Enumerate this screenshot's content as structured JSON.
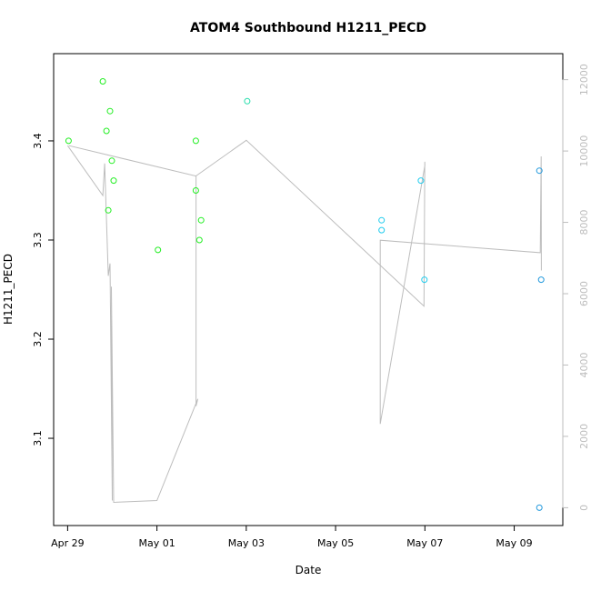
{
  "chart_data": {
    "type": "scatter",
    "title": "ATOM4 Southbound H1211_PECD",
    "xlabel": "Date",
    "ylabel": "H1211_PECD",
    "x_ticks": [
      "Apr 29",
      "May 01",
      "May 03",
      "May 05",
      "May 07",
      "May 09"
    ],
    "xlim": [
      "2013-04-28T16:29",
      "2013-05-10T02:07"
    ],
    "ylim": [
      3.012,
      3.488
    ],
    "y_ticks": [
      3.1,
      3.2,
      3.3,
      3.4
    ],
    "y2_ticks": [
      0,
      2000,
      4000,
      6000,
      8000,
      10000,
      12000
    ],
    "y2lim": [
      -500,
      12730
    ],
    "grid": false,
    "series": [
      {
        "color": "#22ee22",
        "points": [
          {
            "x": "2013-04-29T00:31",
            "y": 3.4
          },
          {
            "x": "2013-04-29T18:55",
            "y": 3.46
          },
          {
            "x": "2013-04-29T20:53",
            "y": 3.41
          },
          {
            "x": "2013-04-29T21:50",
            "y": 3.33
          },
          {
            "x": "2013-04-29T22:48",
            "y": 3.43
          },
          {
            "x": "2013-04-29T23:45",
            "y": 3.38
          },
          {
            "x": "2013-04-30T00:43",
            "y": 3.36
          },
          {
            "x": "2013-05-01T00:31",
            "y": 3.29
          },
          {
            "x": "2013-05-01T20:53",
            "y": 3.4
          },
          {
            "x": "2013-05-01T20:53",
            "y": 3.35
          },
          {
            "x": "2013-05-01T22:48",
            "y": 3.3
          },
          {
            "x": "2013-05-01T23:45",
            "y": 3.32
          }
        ]
      },
      {
        "color": "#22ddaa",
        "points": [
          {
            "x": "2013-05-03T00:31",
            "y": 3.44
          }
        ]
      },
      {
        "color": "#22ccee",
        "points": [
          {
            "x": "2013-05-06T00:43",
            "y": 3.32
          },
          {
            "x": "2013-05-06T00:43",
            "y": 3.31
          },
          {
            "x": "2013-05-06T21:50",
            "y": 3.36
          },
          {
            "x": "2013-05-06T23:45",
            "y": 3.26
          }
        ]
      },
      {
        "color": "#2299dd",
        "points": [
          {
            "x": "2013-05-09T13:31",
            "y": 3.37
          },
          {
            "x": "2013-05-09T14:29",
            "y": 3.26
          },
          {
            "x": "2013-05-09T13:31",
            "y": 3.03
          }
        ]
      }
    ],
    "secondary_line": {
      "color": "#bdbdbd",
      "axis": "right",
      "points": [
        {
          "x": "2013-04-29T00:00",
          "y": 10150
        },
        {
          "x": "2013-04-29T18:55",
          "y": 8750
        },
        {
          "x": "2013-04-29T19:55",
          "y": 9650
        },
        {
          "x": "2013-04-29T21:50",
          "y": 6500
        },
        {
          "x": "2013-04-29T22:48",
          "y": 6850
        },
        {
          "x": "2013-04-30T00:00",
          "y": 200
        },
        {
          "x": "2013-04-29T23:30",
          "y": 6200
        },
        {
          "x": "2013-04-30T00:43",
          "y": 150
        },
        {
          "x": "2013-05-01T00:00",
          "y": 200
        },
        {
          "x": "2013-05-01T22:00",
          "y": 3050
        },
        {
          "x": "2013-05-01T21:00",
          "y": 2850
        },
        {
          "x": "2013-05-01T21:00",
          "y": 9300
        },
        {
          "x": "2013-04-29T00:43",
          "y": 10150
        },
        {
          "x": "2013-05-01T20:53",
          "y": 9300
        },
        {
          "x": "2013-05-03T00:00",
          "y": 10300
        },
        {
          "x": "2013-05-06T23:31",
          "y": 5650
        },
        {
          "x": "2013-05-06T23:56",
          "y": 9700
        },
        {
          "x": "2013-05-07T00:00",
          "y": 9600
        },
        {
          "x": "2013-05-06T00:00",
          "y": 2350
        },
        {
          "x": "2013-05-06T00:00",
          "y": 7500
        },
        {
          "x": "2013-05-09T14:00",
          "y": 7150
        },
        {
          "x": "2013-05-09T14:30",
          "y": 9850
        },
        {
          "x": "2013-05-09T14:36",
          "y": 6650
        }
      ]
    }
  }
}
